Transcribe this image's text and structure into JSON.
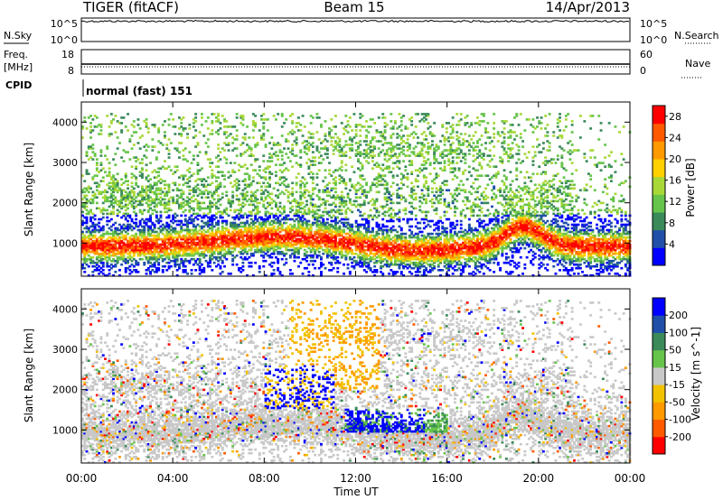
{
  "header": {
    "station": "TIGER (fitACF)",
    "beam": "Beam 15",
    "date": "14/Apr/2013"
  },
  "panel_labels": {
    "nsky": "N.Sky",
    "nsky_ticks": [
      "10^5",
      "10^0"
    ],
    "nsearch": "N.Search",
    "nsearch_ticks": [
      "10^5",
      "10^0"
    ],
    "freq_label": "Freq.",
    "freq_unit": "[MHz]",
    "freq_ticks": [
      "18",
      "8"
    ],
    "nave": "Nave",
    "nave_ticks": [
      "60",
      "0"
    ],
    "cpid": "CPID",
    "cpid_text": "normal (fast) 151"
  },
  "colors": {
    "power": [
      "#0000ff",
      "#1f4fa8",
      "#3a8a5a",
      "#66c44a",
      "#a8d838",
      "#ffd000",
      "#ff9a00",
      "#ff5a00",
      "#ff0000"
    ],
    "velocity": [
      "#0000ff",
      "#1f4fa8",
      "#3a8a5a",
      "#66c44a",
      "#c8c8c8",
      "#f2c200",
      "#ff9a00",
      "#ff5a00",
      "#ff0000"
    ]
  },
  "chart_data": [
    {
      "type": "heatmap",
      "name": "power",
      "ylabel": "Slant Range [km]",
      "ylim": [
        180,
        4500
      ],
      "yticks": [
        1000,
        2000,
        3000,
        4000
      ],
      "xlim": [
        0,
        24
      ],
      "colorbar_label": "Power [dB]",
      "colorbar_ticks": [
        4,
        8,
        12,
        16,
        20,
        24,
        28
      ],
      "colorbar_range": [
        0,
        30
      ]
    },
    {
      "type": "heatmap",
      "name": "velocity",
      "ylabel": "Slant Range [km]",
      "ylim": [
        180,
        4500
      ],
      "yticks": [
        1000,
        2000,
        3000,
        4000
      ],
      "xlim": [
        0,
        24
      ],
      "colorbar_label": "Velocity [m s^-1]",
      "colorbar_ticks": [
        "200",
        "100",
        "50",
        "15",
        "-15",
        "-50",
        "-100",
        "-200"
      ]
    }
  ],
  "time_axis": {
    "label": "Time UT",
    "ticks": [
      "00:00",
      "04:00",
      "08:00",
      "12:00",
      "16:00",
      "20:00",
      "00:00"
    ]
  }
}
